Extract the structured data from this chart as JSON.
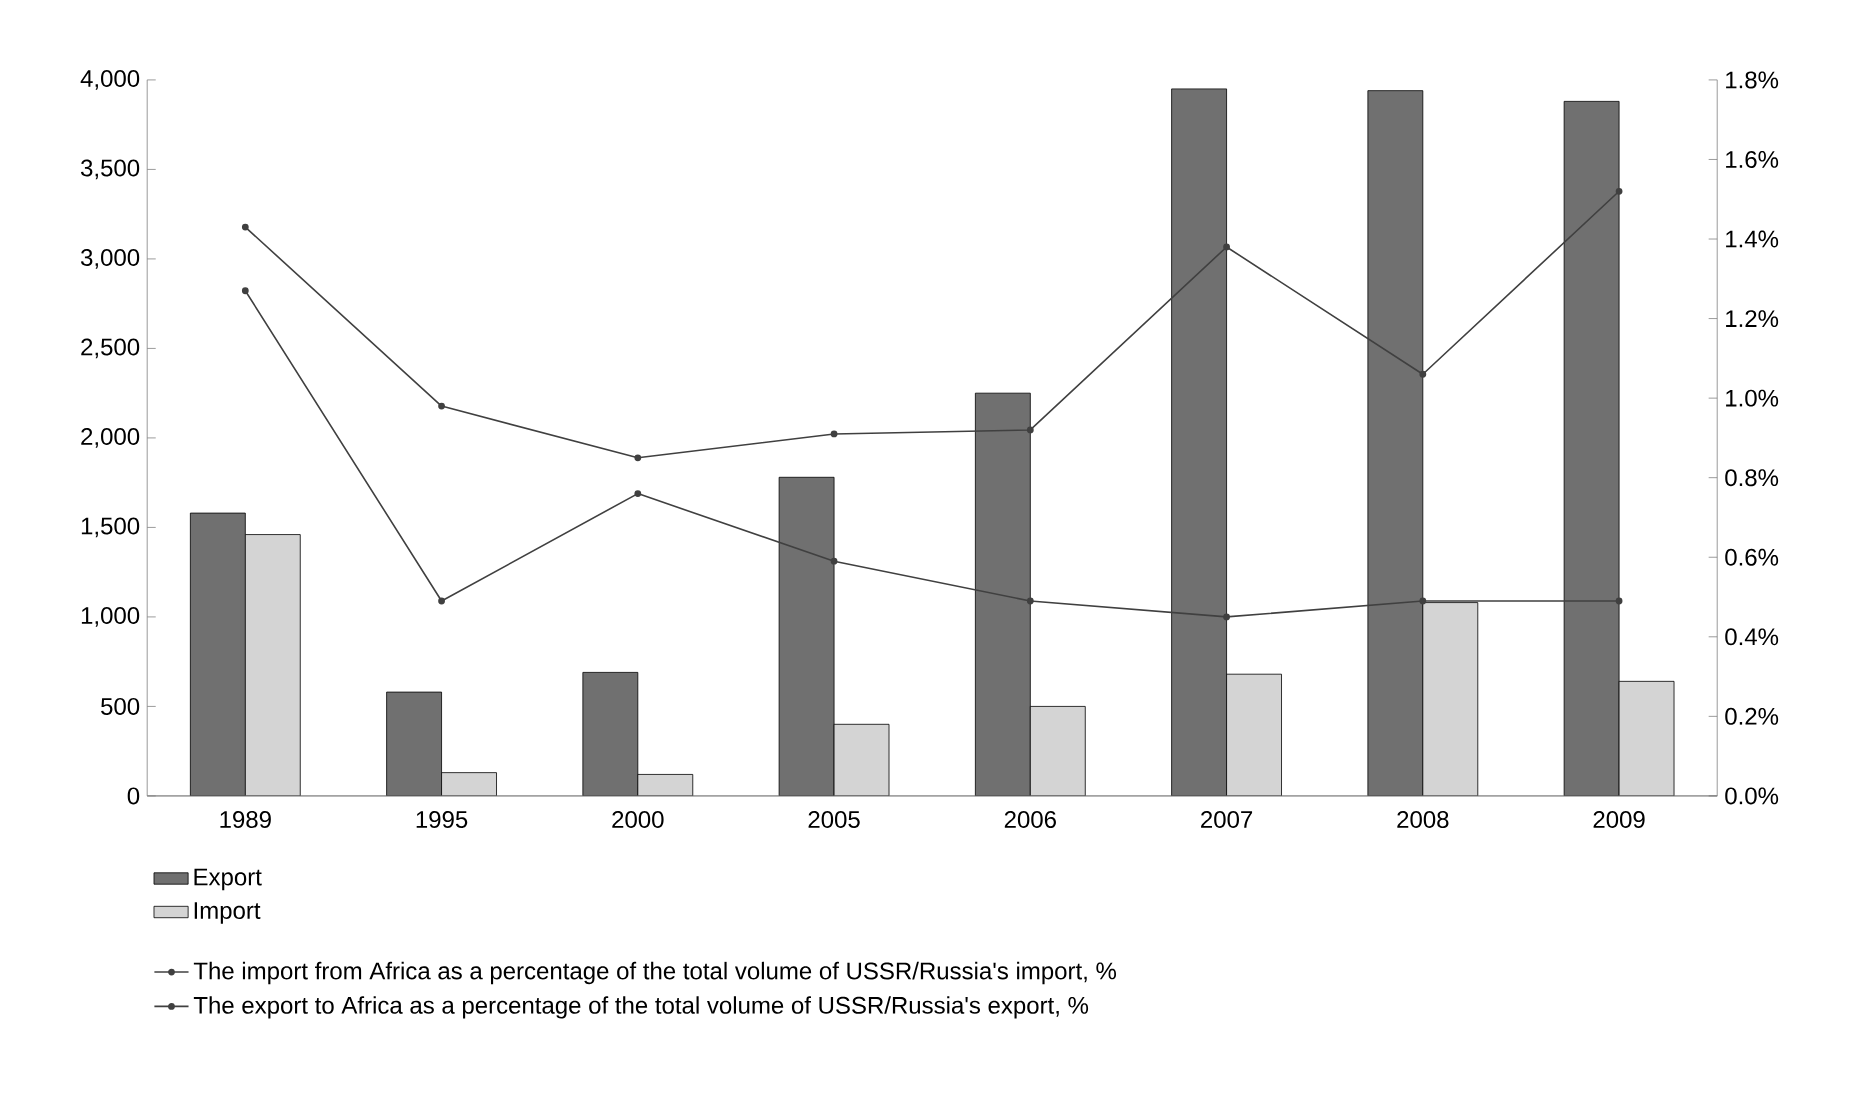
{
  "chart_data": {
    "type": "bar",
    "categories": [
      "1989",
      "1995",
      "2000",
      "2005",
      "2006",
      "2007",
      "2008",
      "2009"
    ],
    "series": [
      {
        "name": "Export",
        "color": "#707070",
        "values": [
          1580,
          580,
          690,
          1780,
          2250,
          3950,
          3940,
          3880
        ]
      },
      {
        "name": "Import",
        "color": "#d4d4d4",
        "values": [
          1460,
          130,
          120,
          400,
          500,
          680,
          1080,
          640
        ]
      },
      {
        "name": "The import from Africa as a percentage of the total volume of USSR/Russia's import, %",
        "type": "line",
        "axis": "y2",
        "color": "#404040",
        "values": [
          1.27,
          0.49,
          0.76,
          0.59,
          0.49,
          0.45,
          0.49,
          0.49
        ]
      },
      {
        "name": "The export to Africa as a percentage of the total volume of USSR/Russia's export, %",
        "type": "line",
        "axis": "y2",
        "color": "#404040",
        "values": [
          1.43,
          0.98,
          0.85,
          0.91,
          0.92,
          1.38,
          1.06,
          1.52
        ]
      }
    ],
    "ylim": [
      0,
      4000
    ],
    "yticks": [
      {
        "value": 0,
        "label": "0"
      },
      {
        "value": 500,
        "label": "500"
      },
      {
        "value": 1000,
        "label": "1,000"
      },
      {
        "value": 1500,
        "label": "1,500"
      },
      {
        "value": 2000,
        "label": "2,000"
      },
      {
        "value": 2500,
        "label": "2,500"
      },
      {
        "value": 3000,
        "label": "3,000"
      },
      {
        "value": 3500,
        "label": "3,500"
      },
      {
        "value": 4000,
        "label": "4,000"
      }
    ],
    "y2lim": [
      0,
      1.8
    ],
    "y2ticks": [
      {
        "value": 0,
        "label": "0.0%"
      },
      {
        "value": 0.2,
        "label": "0.2%"
      },
      {
        "value": 0.4,
        "label": "0.4%"
      },
      {
        "value": 0.6,
        "label": "0.6%"
      },
      {
        "value": 0.8,
        "label": "0.8%"
      },
      {
        "value": 1.0,
        "label": "1.0%"
      },
      {
        "value": 1.2,
        "label": "1.2%"
      },
      {
        "value": 1.4,
        "label": "1.4%"
      },
      {
        "value": 1.6,
        "label": "1.6%"
      },
      {
        "value": 1.8,
        "label": "1.8%"
      }
    ],
    "legend": "bottom",
    "marker": "circle",
    "line_style": "solid"
  }
}
